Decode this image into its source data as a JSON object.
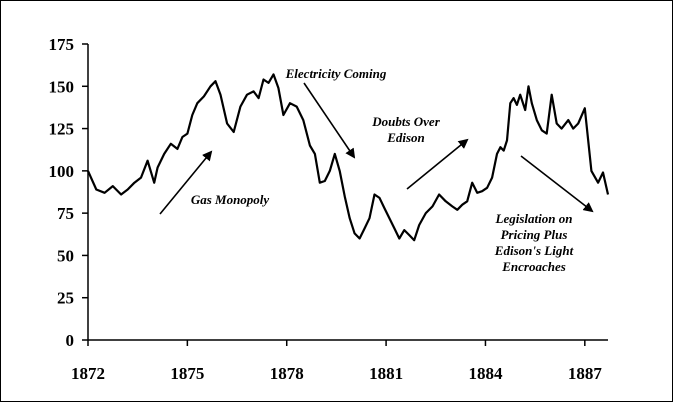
{
  "chart_data": {
    "type": "line",
    "title": "",
    "xlabel": "",
    "ylabel": "",
    "xlim": [
      1872,
      1887.7
    ],
    "ylim": [
      0,
      175
    ],
    "y_ticks": [
      "0",
      "25",
      "50",
      "75",
      "100",
      "125",
      "150",
      "175"
    ],
    "x_ticks": [
      "1872",
      "1875",
      "1878",
      "1881",
      "1884",
      "1887"
    ],
    "grid": false,
    "legend": "none",
    "line_color": "#000000",
    "series": [
      {
        "x": [
          1872.0,
          1872.25,
          1872.5,
          1872.75,
          1873.0,
          1873.2,
          1873.4,
          1873.6,
          1873.8,
          1874.0,
          1874.1,
          1874.3,
          1874.5,
          1874.7,
          1874.85,
          1875.0,
          1875.15,
          1875.3,
          1875.5,
          1875.7,
          1875.85,
          1876.0,
          1876.2,
          1876.4,
          1876.6,
          1876.8,
          1877.0,
          1877.15,
          1877.3,
          1877.45,
          1877.6,
          1877.75,
          1877.9,
          1878.1,
          1878.3,
          1878.5,
          1878.7,
          1878.85,
          1879.0,
          1879.15,
          1879.3,
          1879.45,
          1879.6,
          1879.75,
          1879.9,
          1880.05,
          1880.2,
          1880.35,
          1880.5,
          1880.65,
          1880.8,
          1880.95,
          1881.1,
          1881.25,
          1881.4,
          1881.55,
          1881.7,
          1881.85,
          1882.0,
          1882.2,
          1882.4,
          1882.6,
          1882.8,
          1883.0,
          1883.15,
          1883.3,
          1883.45,
          1883.6,
          1883.75,
          1883.9,
          1884.05,
          1884.2,
          1884.35,
          1884.45,
          1884.55,
          1884.65,
          1884.75,
          1884.85,
          1884.95,
          1885.05,
          1885.2,
          1885.3,
          1885.4,
          1885.55,
          1885.7,
          1885.85,
          1886.0,
          1886.15,
          1886.3,
          1886.5,
          1886.65,
          1886.8,
          1887.0,
          1887.2,
          1887.4,
          1887.55,
          1887.7
        ],
        "y": [
          100,
          89,
          87,
          91,
          86,
          89,
          93,
          96,
          106,
          93,
          102,
          110,
          116,
          113,
          120,
          122,
          133,
          140,
          144,
          150,
          153,
          145,
          128,
          123,
          138,
          145,
          147,
          143,
          154,
          152,
          157,
          149,
          133,
          140,
          138,
          130,
          115,
          110,
          93,
          94,
          100,
          110,
          100,
          85,
          72,
          63,
          60,
          66,
          72,
          86,
          84,
          78,
          72,
          66,
          60,
          65,
          62,
          59,
          68,
          75,
          79,
          86,
          82,
          79,
          77,
          80,
          82,
          93,
          87,
          88,
          90,
          96,
          110,
          114,
          112,
          118,
          140,
          143,
          139,
          145,
          136,
          150,
          140,
          130,
          124,
          122,
          145,
          128,
          125,
          130,
          125,
          128,
          137,
          100,
          93,
          99,
          86
        ]
      }
    ],
    "annotations": [
      {
        "id": "gas",
        "text": [
          "Gas Monopoly"
        ]
      },
      {
        "id": "electricity",
        "text": [
          "Electricity Coming"
        ]
      },
      {
        "id": "doubts",
        "text": [
          "Doubts Over",
          "Edison"
        ]
      },
      {
        "id": "legislation",
        "text": [
          "Legislation on",
          "Pricing Plus",
          "Edison's Light",
          "Encroaches"
        ]
      }
    ]
  }
}
